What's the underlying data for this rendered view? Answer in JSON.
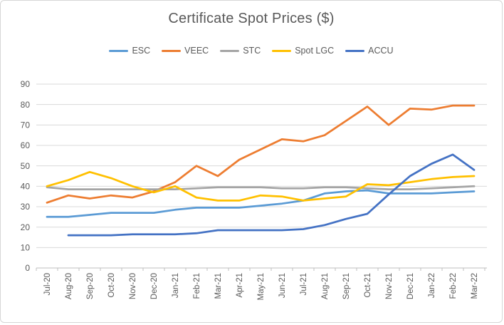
{
  "window": {
    "background": "#ffffff",
    "frame_border_color": "#d6d6d6"
  },
  "chart_data": {
    "type": "line",
    "title": "Certificate Spot Prices ($)",
    "categories": [
      "Jul-20",
      "Aug-20",
      "Sep-20",
      "Oct-20",
      "Nov-20",
      "Dec-20",
      "Jan-21",
      "Feb-21",
      "Mar-21",
      "Apr-21",
      "May-21",
      "Jun-21",
      "Jul-21",
      "Aug-21",
      "Sep-21",
      "Oct-21",
      "Nov-21",
      "Dec-21",
      "Jan-22",
      "Feb-22",
      "Mar-22"
    ],
    "series": [
      {
        "name": "ESC",
        "color": "#5B9BD5",
        "values": [
          25,
          25,
          26,
          27,
          27,
          27,
          28.5,
          29.5,
          29.5,
          29.5,
          30.5,
          31.5,
          33,
          36.5,
          37.5,
          38,
          36.5,
          36.5,
          36.5,
          37,
          37.5
        ]
      },
      {
        "name": "VEEC",
        "color": "#ED7D31",
        "values": [
          32,
          35.5,
          34,
          35.5,
          34.5,
          37.5,
          42,
          50,
          45,
          53,
          58,
          63,
          62,
          65,
          72,
          79,
          70,
          78,
          77.5,
          79.5,
          79.5
        ]
      },
      {
        "name": "STC",
        "color": "#A5A5A5",
        "values": [
          39.5,
          38.5,
          38.5,
          38.5,
          38.5,
          38.5,
          38.5,
          39,
          39.5,
          39.5,
          39.5,
          39,
          39,
          39.5,
          39.5,
          39,
          38.5,
          38.5,
          39,
          39.5,
          40
        ]
      },
      {
        "name": "Spot LGC",
        "color": "#FFC000",
        "values": [
          40,
          43,
          47,
          44,
          40,
          37,
          40,
          34.5,
          33,
          33,
          35.5,
          35,
          33,
          34,
          35,
          41,
          40.5,
          42,
          43.5,
          44.5,
          45
        ]
      },
      {
        "name": "ACCU",
        "color": "#4472C4",
        "values": [
          null,
          16,
          16,
          16,
          16.5,
          16.5,
          16.5,
          17,
          18.5,
          18.5,
          18.5,
          18.5,
          19,
          21,
          24,
          26.5,
          36,
          45,
          51,
          55.5,
          48
        ]
      }
    ],
    "ylim": [
      0,
      90
    ],
    "yticks": [
      0,
      10,
      20,
      30,
      40,
      50,
      60,
      70,
      80,
      90
    ],
    "grid": "horizontal",
    "legend_position": "top",
    "x_label_rotation": -90,
    "gridline_color": "#d9d9d9",
    "axis_color": "#bfbfbf",
    "text_color": "#595959",
    "line_width": 2.75
  }
}
